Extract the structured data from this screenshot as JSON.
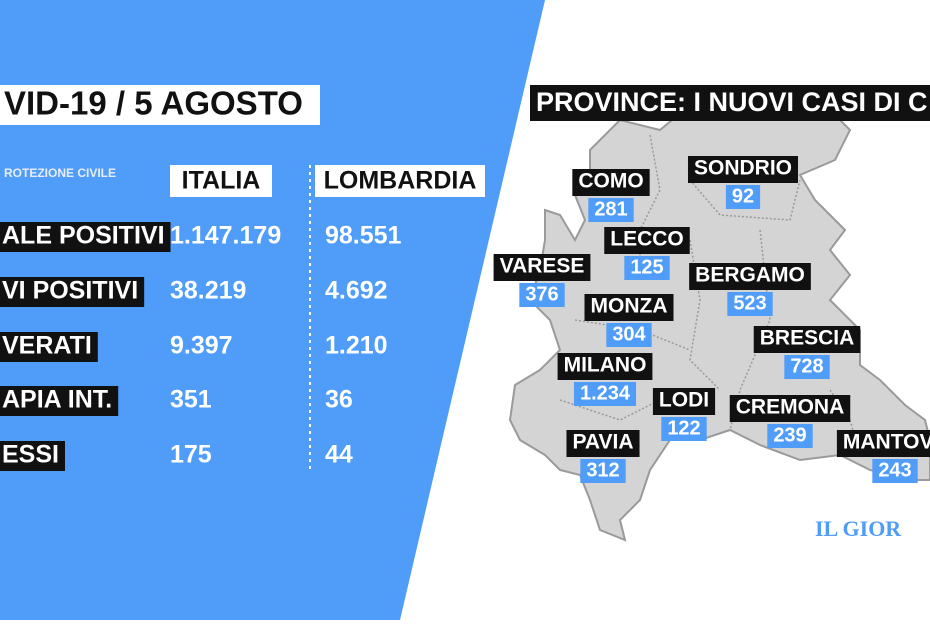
{
  "header": {
    "title": "VID-19 / 5 AGOSTO",
    "source": "ROTEZIONE CIVILE"
  },
  "table": {
    "columns": [
      "ITALIA",
      "LOMBARDIA"
    ],
    "rows": [
      [
        "ALE POSITIVI",
        "1.147.179",
        "98.551"
      ],
      [
        "VI POSITIVI",
        "38.219",
        "4.692"
      ],
      [
        "VERATI",
        "9.397",
        "1.210"
      ],
      [
        "APIA INT.",
        "351",
        "36"
      ],
      [
        "ESSI",
        "175",
        "44"
      ]
    ]
  },
  "map": {
    "title": "PROVINCE: I NUOVI CASI DI C",
    "provinces": [
      {
        "name": "COMO",
        "value": "281"
      },
      {
        "name": "SONDRIO",
        "value": "92"
      },
      {
        "name": "LECCO",
        "value": "125"
      },
      {
        "name": "VARESE",
        "value": "376"
      },
      {
        "name": "BERGAMO",
        "value": "523"
      },
      {
        "name": "MONZA",
        "value": "304"
      },
      {
        "name": "BRESCIA",
        "value": "728"
      },
      {
        "name": "MILANO",
        "value": "1.234"
      },
      {
        "name": "LODI",
        "value": "122"
      },
      {
        "name": "CREMONA",
        "value": "239"
      },
      {
        "name": "PAVIA",
        "value": "312"
      },
      {
        "name": "MANTOVA",
        "value": "243"
      }
    ]
  },
  "logo": "IL GIOR"
}
